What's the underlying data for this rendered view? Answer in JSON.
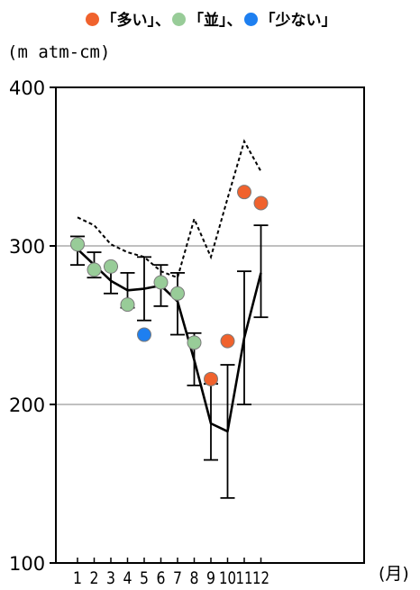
{
  "legend": [
    {
      "text": "「多い」、",
      "color": "#f0622d"
    },
    {
      "text": "「並」、",
      "color": "#98cc98"
    },
    {
      "text": "「少ない」",
      "color": "#1e7ff0"
    }
  ],
  "unit_label": "(m atm-cm)",
  "chart_data": {
    "type": "line",
    "x": [
      1,
      2,
      3,
      4,
      5,
      6,
      7,
      8,
      9,
      10,
      11,
      12
    ],
    "xtick_labels": [
      "1",
      "2",
      "3",
      "4",
      "5",
      "6",
      "7",
      "8",
      "9",
      "10",
      "11",
      "12"
    ],
    "xlabel": "(月)",
    "ylabel": "(m atm-cm)",
    "ylim": [
      100,
      400
    ],
    "yticks": [
      100,
      200,
      300,
      400
    ],
    "gridlines_y": [
      200,
      300
    ],
    "series": [
      {
        "kind": "normal_solid",
        "color": "#000000",
        "values": [
          298,
          288,
          278,
          272,
          273,
          275,
          265,
          228,
          188,
          183,
          242,
          283
        ]
      },
      {
        "kind": "max_dashed",
        "color": "#000000",
        "values": [
          318,
          313,
          301,
          296,
          293,
          284,
          280,
          317,
          293,
          330,
          366,
          347
        ]
      },
      {
        "kind": "errorbar",
        "color": "#000000",
        "low": [
          288,
          280,
          270,
          261,
          253,
          262,
          244,
          212,
          165,
          141,
          200,
          255
        ],
        "high": [
          306,
          296,
          287,
          283,
          293,
          288,
          283,
          245,
          213,
          225,
          284,
          313
        ]
      },
      {
        "kind": "observed_points",
        "values": [
          301,
          285,
          287,
          263,
          244,
          277,
          270,
          239,
          216,
          240,
          334,
          327
        ],
        "categories": [
          "並",
          "並",
          "並",
          "並",
          "少ない",
          "並",
          "並",
          "並",
          "多い",
          "多い",
          "多い",
          "多い"
        ]
      }
    ],
    "category_colors": {
      "多い": "#f0622d",
      "並": "#98cc98",
      "少ない": "#1e7ff0"
    }
  }
}
